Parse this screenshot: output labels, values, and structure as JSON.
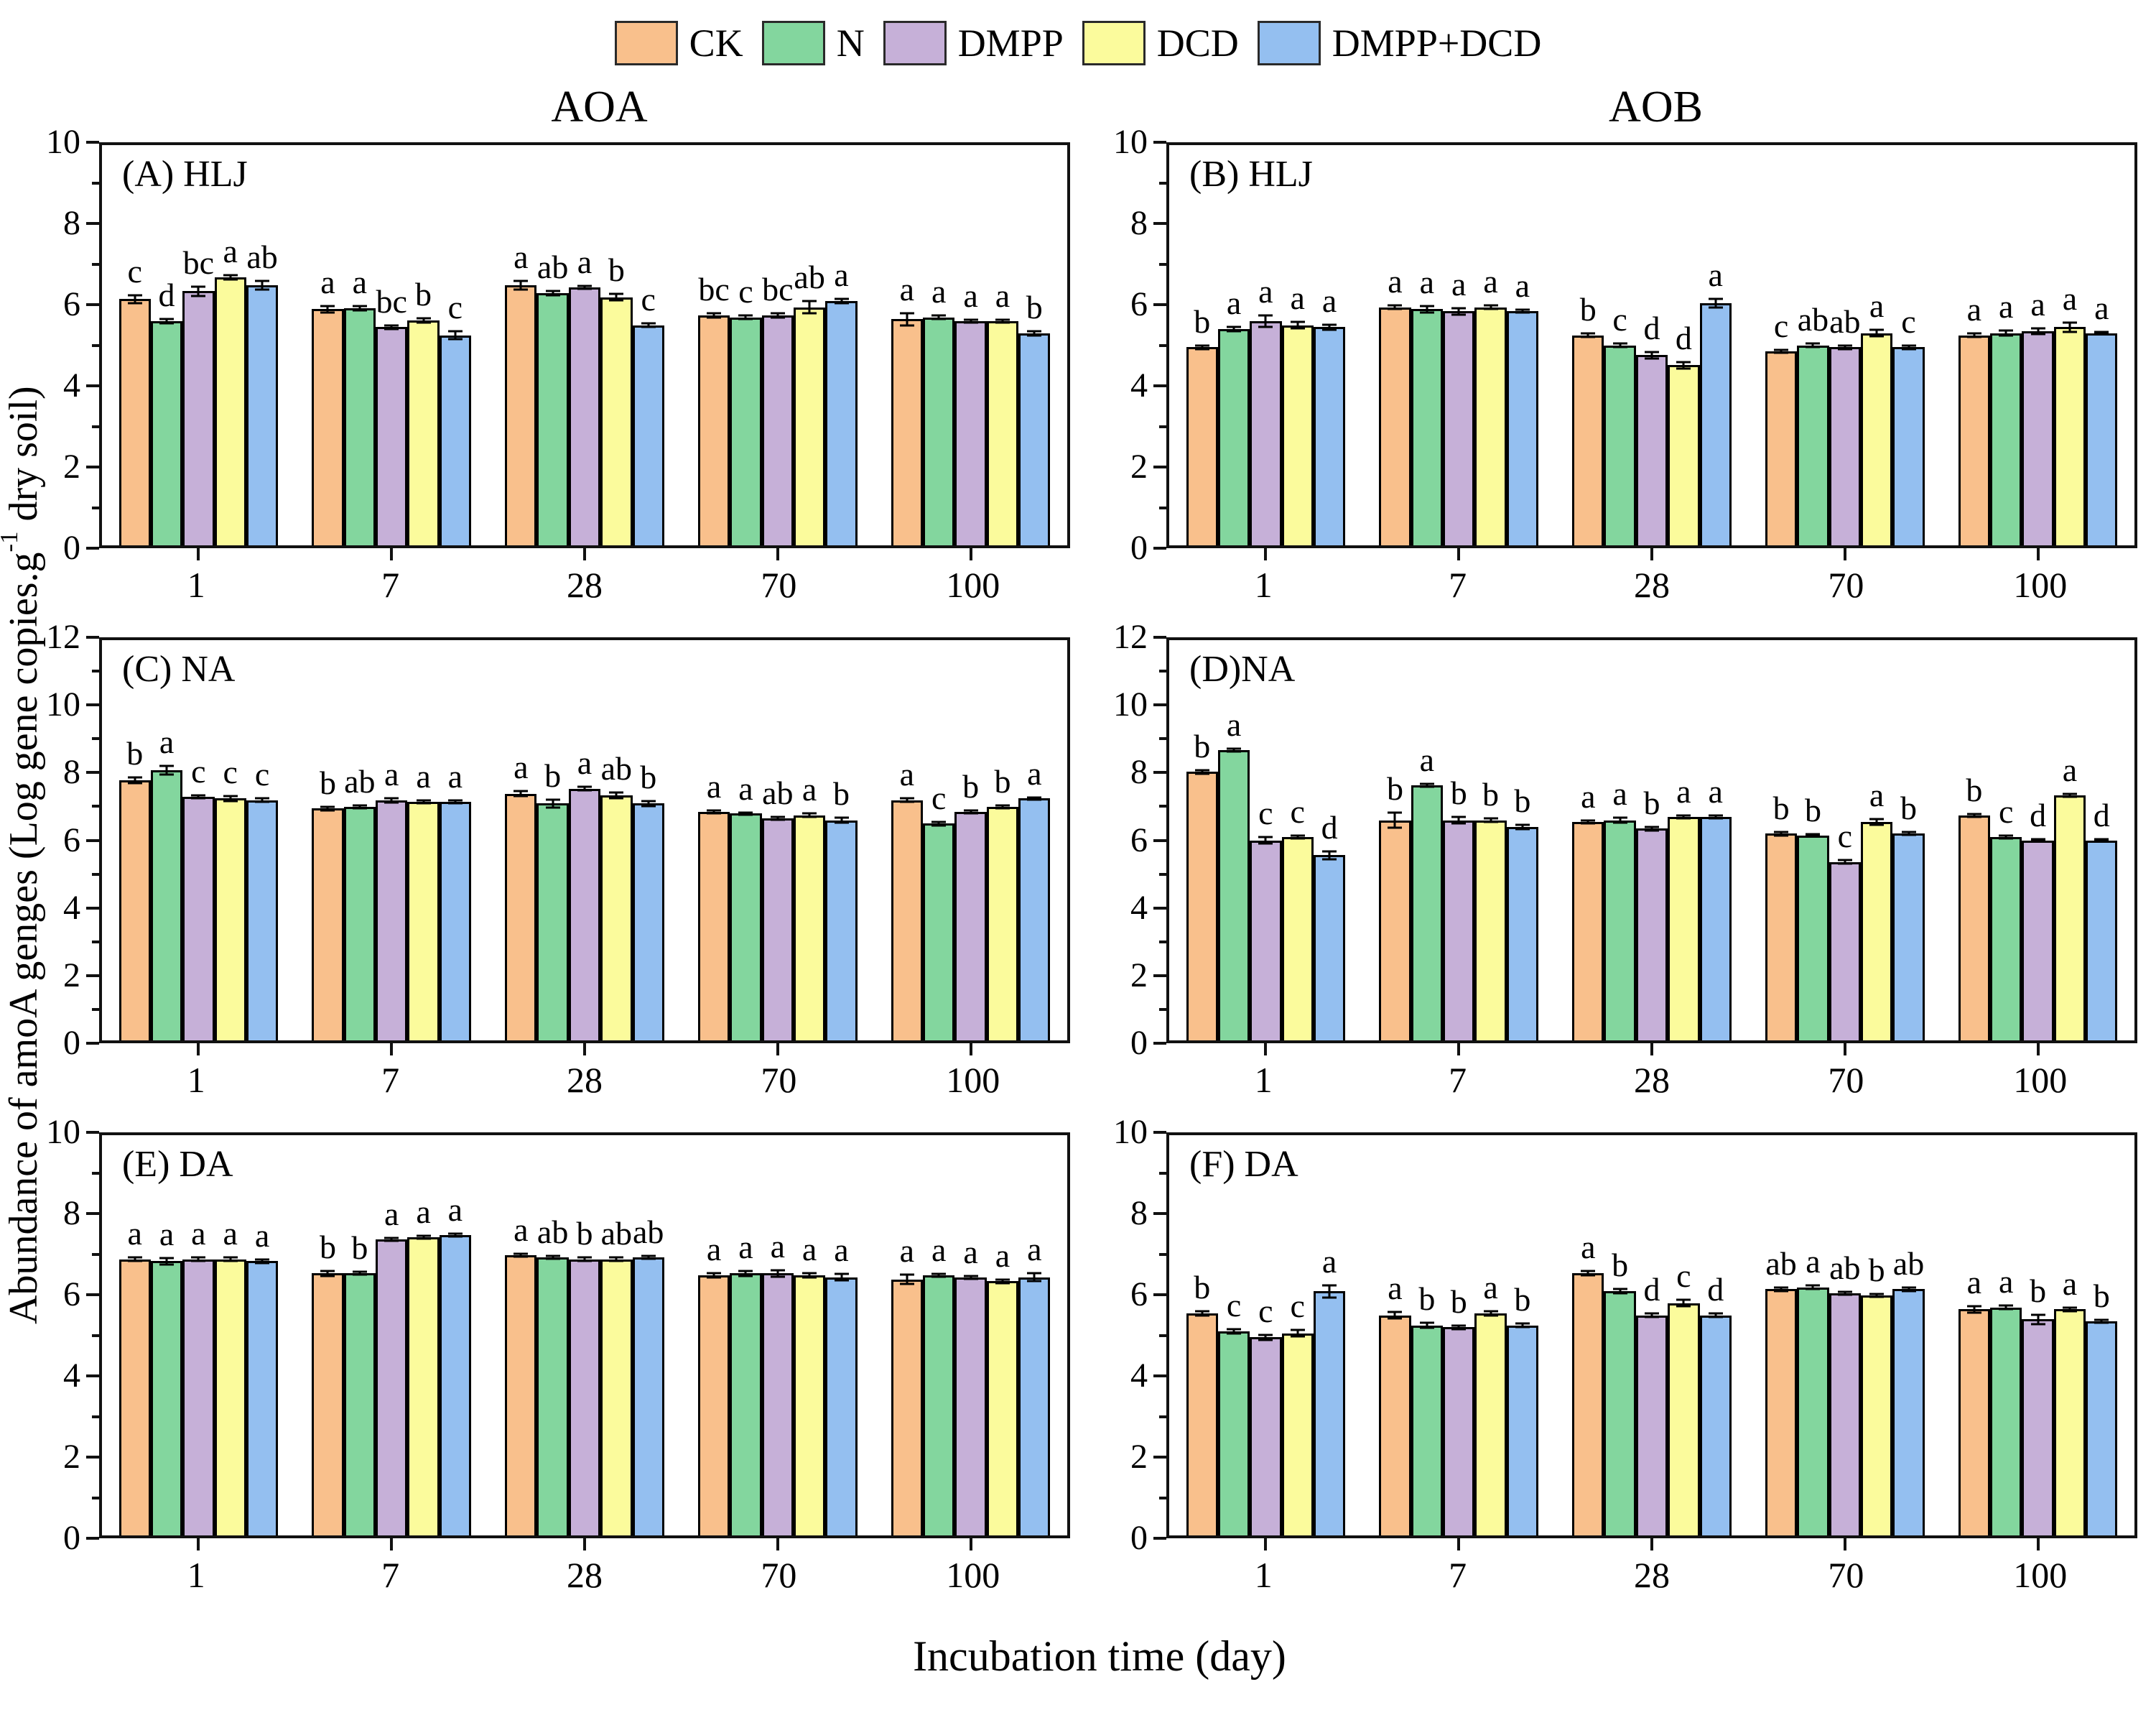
{
  "legend": [
    {
      "label": "CK",
      "color": "#F9C08C"
    },
    {
      "label": "N",
      "color": "#83D69E"
    },
    {
      "label": "DMPP",
      "color": "#C6B0D8"
    },
    {
      "label": "DCD",
      "color": "#FBFB9C"
    },
    {
      "label": "DMPP+DCD",
      "color": "#94BFF0"
    }
  ],
  "column_titles": [
    "AOA",
    "AOB"
  ],
  "xlabel": "Incubation time (day)",
  "ylabel": {
    "prefix": "Abundance of amoA genges (Log gene copies.g",
    "sup": "-1",
    "suffix": " dry soil)"
  },
  "chart_data": [
    {
      "id": "A",
      "label": "(A) HLJ",
      "type": "bar",
      "column": "AOA",
      "ylim": [
        0,
        10
      ],
      "ytick_step": 2,
      "grid": false,
      "categories": [
        "1",
        "7",
        "28",
        "70",
        "100"
      ],
      "series": [
        {
          "name": "CK",
          "values": [
            6.15,
            5.9,
            6.5,
            5.75,
            5.65
          ],
          "errors": [
            0.1,
            0.08,
            0.1,
            0.05,
            0.15
          ],
          "letters": [
            "c",
            "a",
            "a",
            "bc",
            "a"
          ]
        },
        {
          "name": "N",
          "values": [
            5.6,
            5.92,
            6.3,
            5.7,
            5.7
          ],
          "errors": [
            0.05,
            0.05,
            0.05,
            0.05,
            0.05
          ],
          "letters": [
            "d",
            "a",
            "ab",
            "c",
            "a"
          ]
        },
        {
          "name": "DMPP",
          "values": [
            6.35,
            5.45,
            6.45,
            5.75,
            5.6
          ],
          "errors": [
            0.12,
            0.05,
            0.04,
            0.05,
            0.04
          ],
          "letters": [
            "bc",
            "bc",
            "a",
            "bc",
            "a"
          ]
        },
        {
          "name": "DCD",
          "values": [
            6.7,
            5.62,
            6.2,
            5.95,
            5.6
          ],
          "errors": [
            0.05,
            0.05,
            0.08,
            0.15,
            0.04
          ],
          "letters": [
            "a",
            "b",
            "b",
            "ab",
            "a"
          ]
        },
        {
          "name": "DMPP+DCD",
          "values": [
            6.5,
            5.25,
            5.5,
            6.1,
            5.3
          ],
          "errors": [
            0.1,
            0.1,
            0.05,
            0.05,
            0.05
          ],
          "letters": [
            "ab",
            "c",
            "c",
            "a",
            "b"
          ]
        }
      ]
    },
    {
      "id": "B",
      "label": "(B) HLJ",
      "type": "bar",
      "column": "AOB",
      "ylim": [
        0,
        10
      ],
      "ytick_step": 2,
      "grid": false,
      "categories": [
        "1",
        "7",
        "28",
        "70",
        "100"
      ],
      "series": [
        {
          "name": "CK",
          "values": [
            4.95,
            5.95,
            5.25,
            4.85,
            5.25
          ],
          "errors": [
            0.04,
            0.04,
            0.05,
            0.04,
            0.04
          ],
          "letters": [
            "b",
            "a",
            "b",
            "c",
            "a"
          ]
        },
        {
          "name": "N",
          "values": [
            5.4,
            5.9,
            5.0,
            5.0,
            5.3
          ],
          "errors": [
            0.05,
            0.08,
            0.04,
            0.04,
            0.06
          ],
          "letters": [
            "a",
            "a",
            "c",
            "ab",
            "a"
          ]
        },
        {
          "name": "DMPP",
          "values": [
            5.6,
            5.85,
            4.75,
            4.95,
            5.35
          ],
          "errors": [
            0.15,
            0.08,
            0.08,
            0.05,
            0.08
          ],
          "letters": [
            "a",
            "a",
            "d",
            "ab",
            "a"
          ]
        },
        {
          "name": "DCD",
          "values": [
            5.5,
            5.95,
            4.5,
            5.3,
            5.45
          ],
          "errors": [
            0.08,
            0.05,
            0.08,
            0.08,
            0.12
          ],
          "letters": [
            "a",
            "a",
            "d",
            "a",
            "a"
          ]
        },
        {
          "name": "DMPP+DCD",
          "values": [
            5.45,
            5.85,
            6.05,
            4.95,
            5.3
          ],
          "errors": [
            0.06,
            0.04,
            0.1,
            0.05,
            0.03
          ],
          "letters": [
            "a",
            "a",
            "a",
            "c",
            "a"
          ]
        }
      ]
    },
    {
      "id": "C",
      "label": "(C) NA",
      "type": "bar",
      "column": "AOA",
      "ylim": [
        0,
        12
      ],
      "ytick_step": 2,
      "grid": false,
      "categories": [
        "1",
        "7",
        "28",
        "70",
        "100"
      ],
      "series": [
        {
          "name": "CK",
          "values": [
            7.8,
            6.95,
            7.4,
            6.85,
            7.2
          ],
          "errors": [
            0.08,
            0.05,
            0.08,
            0.04,
            0.05
          ],
          "letters": [
            "b",
            "b",
            "a",
            "a",
            "a"
          ]
        },
        {
          "name": "N",
          "values": [
            8.1,
            7.0,
            7.1,
            6.8,
            6.5
          ],
          "errors": [
            0.12,
            0.05,
            0.12,
            0.04,
            0.05
          ],
          "letters": [
            "a",
            "ab",
            "b",
            "a",
            "c"
          ]
        },
        {
          "name": "DMPP",
          "values": [
            7.3,
            7.2,
            7.55,
            6.65,
            6.85
          ],
          "errors": [
            0.05,
            0.06,
            0.05,
            0.04,
            0.04
          ],
          "letters": [
            "c",
            "a",
            "a",
            "ab",
            "b"
          ]
        },
        {
          "name": "DCD",
          "values": [
            7.25,
            7.15,
            7.35,
            6.75,
            7.0
          ],
          "errors": [
            0.08,
            0.04,
            0.08,
            0.06,
            0.05
          ],
          "letters": [
            "c",
            "a",
            "ab",
            "a",
            "b"
          ]
        },
        {
          "name": "DMPP+DCD",
          "values": [
            7.2,
            7.15,
            7.1,
            6.6,
            7.25
          ],
          "errors": [
            0.05,
            0.04,
            0.08,
            0.07,
            0.04
          ],
          "letters": [
            "c",
            "a",
            "b",
            "b",
            "a"
          ]
        }
      ]
    },
    {
      "id": "D",
      "label": "(D)NA",
      "type": "bar",
      "column": "AOB",
      "ylim": [
        0,
        12
      ],
      "ytick_step": 2,
      "grid": false,
      "categories": [
        "1",
        "7",
        "28",
        "70",
        "100"
      ],
      "series": [
        {
          "name": "CK",
          "values": [
            8.05,
            6.6,
            6.55,
            6.2,
            6.75
          ],
          "errors": [
            0.05,
            0.22,
            0.05,
            0.05,
            0.04
          ],
          "letters": [
            "b",
            "b",
            "a",
            "b",
            "b"
          ]
        },
        {
          "name": "N",
          "values": [
            8.7,
            7.65,
            6.6,
            6.15,
            6.1
          ],
          "errors": [
            0.04,
            0.05,
            0.08,
            0.04,
            0.05
          ],
          "letters": [
            "a",
            "a",
            "a",
            "b",
            "c"
          ]
        },
        {
          "name": "DMPP",
          "values": [
            6.0,
            6.6,
            6.35,
            5.35,
            6.0
          ],
          "errors": [
            0.1,
            0.1,
            0.05,
            0.05,
            0.04
          ],
          "letters": [
            "c",
            "b",
            "b",
            "c",
            "d"
          ]
        },
        {
          "name": "DCD",
          "values": [
            6.1,
            6.6,
            6.7,
            6.55,
            7.35
          ],
          "errors": [
            0.05,
            0.06,
            0.04,
            0.08,
            0.04
          ],
          "letters": [
            "c",
            "b",
            "a",
            "a",
            "a"
          ]
        },
        {
          "name": "DMPP+DCD",
          "values": [
            5.55,
            6.4,
            6.7,
            6.2,
            6.0
          ],
          "errors": [
            0.12,
            0.06,
            0.05,
            0.04,
            0.04
          ],
          "letters": [
            "d",
            "b",
            "a",
            "b",
            "d"
          ]
        }
      ]
    },
    {
      "id": "E",
      "label": "(E) DA",
      "type": "bar",
      "column": "AOA",
      "ylim": [
        0,
        10
      ],
      "ytick_step": 2,
      "grid": false,
      "categories": [
        "1",
        "7",
        "28",
        "70",
        "100"
      ],
      "series": [
        {
          "name": "CK",
          "values": [
            6.9,
            6.55,
            7.0,
            6.5,
            6.4
          ],
          "errors": [
            0.04,
            0.06,
            0.04,
            0.05,
            0.12
          ],
          "letters": [
            "a",
            "b",
            "a",
            "a",
            "a"
          ]
        },
        {
          "name": "N",
          "values": [
            6.85,
            6.55,
            6.95,
            6.55,
            6.5
          ],
          "errors": [
            0.08,
            0.04,
            0.04,
            0.06,
            0.04
          ],
          "letters": [
            "a",
            "b",
            "ab",
            "a",
            "a"
          ]
        },
        {
          "name": "DMPP",
          "values": [
            6.9,
            7.4,
            6.9,
            6.55,
            6.45
          ],
          "errors": [
            0.04,
            0.04,
            0.04,
            0.08,
            0.04
          ],
          "letters": [
            "a",
            "a",
            "b",
            "a",
            "a"
          ]
        },
        {
          "name": "DCD",
          "values": [
            6.9,
            7.45,
            6.9,
            6.5,
            6.35
          ],
          "errors": [
            0.05,
            0.04,
            0.05,
            0.05,
            0.05
          ],
          "letters": [
            "a",
            "a",
            "ab",
            "a",
            "a"
          ]
        },
        {
          "name": "DMPP+DCD",
          "values": [
            6.85,
            7.5,
            6.95,
            6.45,
            6.45
          ],
          "errors": [
            0.04,
            0.04,
            0.04,
            0.08,
            0.1
          ],
          "letters": [
            "a",
            "a",
            "ab",
            "a",
            "a"
          ]
        }
      ]
    },
    {
      "id": "F",
      "label": "(F) DA",
      "type": "bar",
      "column": "AOB",
      "ylim": [
        0,
        10
      ],
      "ytick_step": 2,
      "grid": false,
      "categories": [
        "1",
        "7",
        "28",
        "70",
        "100"
      ],
      "series": [
        {
          "name": "CK",
          "values": [
            5.55,
            5.5,
            6.55,
            6.15,
            5.65
          ],
          "errors": [
            0.05,
            0.08,
            0.05,
            0.05,
            0.08
          ],
          "letters": [
            "b",
            "a",
            "a",
            "ab",
            "a"
          ]
        },
        {
          "name": "N",
          "values": [
            5.1,
            5.25,
            6.1,
            6.2,
            5.7
          ],
          "errors": [
            0.06,
            0.06,
            0.05,
            0.05,
            0.04
          ],
          "letters": [
            "c",
            "b",
            "b",
            "a",
            "a"
          ]
        },
        {
          "name": "DMPP",
          "values": [
            4.95,
            5.2,
            5.5,
            6.05,
            5.4
          ],
          "errors": [
            0.06,
            0.04,
            0.05,
            0.04,
            0.12
          ],
          "letters": [
            "c",
            "b",
            "d",
            "ab",
            "b"
          ]
        },
        {
          "name": "DCD",
          "values": [
            5.05,
            5.55,
            5.8,
            6.0,
            5.65
          ],
          "errors": [
            0.08,
            0.05,
            0.08,
            0.04,
            0.05
          ],
          "letters": [
            "c",
            "a",
            "c",
            "b",
            "a"
          ]
        },
        {
          "name": "DMPP+DCD",
          "values": [
            6.1,
            5.25,
            5.5,
            6.15,
            5.35
          ],
          "errors": [
            0.15,
            0.04,
            0.04,
            0.04,
            0.04
          ],
          "letters": [
            "a",
            "b",
            "d",
            "ab",
            "b"
          ]
        }
      ]
    }
  ]
}
